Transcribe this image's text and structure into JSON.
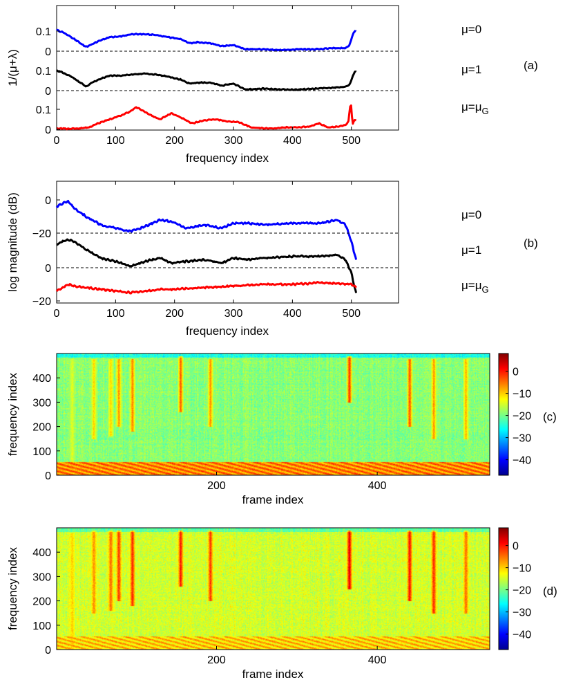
{
  "chart_data": [
    {
      "type": "line",
      "panel_label": "(a)",
      "xlabel": "frequency index",
      "ylabel": "1/(μ+λ)",
      "xlim": [
        0,
        580
      ],
      "xticks": [
        0,
        100,
        200,
        300,
        400,
        500
      ],
      "subplot_yticks": [
        "0",
        "0.1"
      ],
      "reference_line": "dashed at 0",
      "series": [
        {
          "name": "μ=0",
          "color": "#0000ff",
          "x": [
            0,
            10,
            25,
            40,
            50,
            60,
            75,
            90,
            110,
            130,
            150,
            170,
            190,
            210,
            225,
            240,
            260,
            280,
            300,
            320,
            350,
            380,
            410,
            440,
            470,
            490,
            497,
            502,
            507
          ],
          "values": [
            0.105,
            0.095,
            0.07,
            0.04,
            0.02,
            0.035,
            0.055,
            0.07,
            0.075,
            0.085,
            0.085,
            0.08,
            0.07,
            0.06,
            0.04,
            0.045,
            0.04,
            0.025,
            0.03,
            0.01,
            0.01,
            0.005,
            0.01,
            0.01,
            0.015,
            0.015,
            0.03,
            0.08,
            0.105
          ]
        },
        {
          "name": "μ=1",
          "color": "#000000",
          "x": [
            0,
            10,
            25,
            40,
            50,
            60,
            75,
            90,
            110,
            130,
            150,
            170,
            190,
            210,
            225,
            240,
            260,
            280,
            300,
            320,
            350,
            380,
            410,
            440,
            470,
            490,
            497,
            502,
            507
          ],
          "values": [
            0.1,
            0.09,
            0.07,
            0.04,
            0.02,
            0.04,
            0.06,
            0.075,
            0.075,
            0.08,
            0.085,
            0.08,
            0.07,
            0.055,
            0.035,
            0.04,
            0.04,
            0.025,
            0.035,
            0.005,
            0.01,
            0.005,
            0.005,
            0.01,
            0.015,
            0.02,
            0.03,
            0.07,
            0.1
          ]
        },
        {
          "name": "μ=μG",
          "color": "#ff0000",
          "x": [
            0,
            20,
            40,
            55,
            70,
            90,
            110,
            125,
            135,
            145,
            160,
            175,
            195,
            210,
            230,
            250,
            270,
            290,
            310,
            330,
            350,
            370,
            390,
            410,
            430,
            445,
            460,
            480,
            490,
            495,
            499,
            502,
            505,
            508
          ],
          "values": [
            0.005,
            0.003,
            0.005,
            0.01,
            0.03,
            0.05,
            0.07,
            0.09,
            0.11,
            0.095,
            0.07,
            0.05,
            0.08,
            0.06,
            0.03,
            0.045,
            0.05,
            0.04,
            0.035,
            0.01,
            0.005,
            0.005,
            0.01,
            0.01,
            0.015,
            0.03,
            0.01,
            0.015,
            0.02,
            0.04,
            0.14,
            0.02,
            0.05,
            0.045
          ]
        }
      ]
    },
    {
      "type": "line",
      "panel_label": "(b)",
      "xlabel": "frequency index",
      "ylabel": "log magnitude (dB)",
      "xlim": [
        0,
        580
      ],
      "xticks": [
        0,
        100,
        200,
        300,
        400,
        500
      ],
      "subplot_yticks": [
        "0",
        "−20"
      ],
      "reference_line": "dashed at 0",
      "series": [
        {
          "name": "μ=0",
          "color": "#0000ff",
          "x": [
            0,
            10,
            20,
            30,
            50,
            75,
            100,
            125,
            150,
            175,
            195,
            220,
            250,
            280,
            300,
            325,
            350,
            400,
            450,
            475,
            490,
            500,
            505,
            508
          ],
          "values": [
            -4,
            -2,
            -1,
            -5,
            -10,
            -15,
            -17,
            -19,
            -16,
            -12,
            -13,
            -17,
            -15,
            -17,
            -14,
            -14,
            -15,
            -14,
            -14,
            -12,
            -15,
            -25,
            -32,
            -36
          ]
        },
        {
          "name": "μ=1",
          "color": "#000000",
          "x": [
            0,
            10,
            20,
            30,
            50,
            75,
            100,
            125,
            150,
            175,
            195,
            220,
            250,
            280,
            300,
            325,
            350,
            400,
            450,
            475,
            490,
            500,
            505,
            508
          ],
          "values": [
            -7,
            -5,
            -4,
            -5,
            -10,
            -15,
            -17,
            -20,
            -17,
            -15,
            -18,
            -17,
            -16,
            -18,
            -15,
            -16,
            -15,
            -14,
            -14,
            -13,
            -16,
            -24,
            -32,
            -36
          ]
        },
        {
          "name": "μ=μG",
          "color": "#ff0000",
          "x": [
            0,
            10,
            20,
            30,
            50,
            75,
            100,
            125,
            150,
            175,
            200,
            250,
            300,
            350,
            400,
            450,
            500,
            508
          ],
          "values": [
            -14,
            -12,
            -10,
            -11,
            -12,
            -13,
            -14,
            -15,
            -14,
            -13,
            -13,
            -12,
            -11,
            -10,
            -10,
            -9,
            -10,
            -12
          ]
        }
      ]
    },
    {
      "type": "heatmap",
      "panel_label": "(c)",
      "xlabel": "frame index",
      "ylabel": "frequency index",
      "xlim": [
        1,
        540
      ],
      "ylim": [
        0,
        500
      ],
      "xticks": [
        200,
        400
      ],
      "yticks": [
        0,
        100,
        200,
        300,
        400
      ],
      "colorbar_ticks": [
        0,
        -10,
        -20,
        -30,
        -40
      ],
      "clim": [
        -47,
        8
      ],
      "colormap": "jet",
      "base_level": -19,
      "low_frequency_band": {
        "freq_max": 55,
        "level": -6
      },
      "events": [
        {
          "frame": 20,
          "fmin": 0,
          "fmax": 480,
          "level": -14
        },
        {
          "frame": 47,
          "fmin": 150,
          "fmax": 480,
          "level": -10
        },
        {
          "frame": 68,
          "fmin": 160,
          "fmax": 480,
          "level": -10
        },
        {
          "frame": 78,
          "fmin": 200,
          "fmax": 480,
          "level": -6
        },
        {
          "frame": 95,
          "fmin": 180,
          "fmax": 480,
          "level": -5
        },
        {
          "frame": 155,
          "fmin": 260,
          "fmax": 490,
          "level": -3
        },
        {
          "frame": 192,
          "fmin": 200,
          "fmax": 480,
          "level": -6
        },
        {
          "frame": 365,
          "fmin": 300,
          "fmax": 490,
          "level": 0
        },
        {
          "frame": 440,
          "fmin": 200,
          "fmax": 480,
          "level": -2
        },
        {
          "frame": 470,
          "fmin": 150,
          "fmax": 480,
          "level": -6
        },
        {
          "frame": 510,
          "fmin": 150,
          "fmax": 480,
          "level": -8
        }
      ]
    },
    {
      "type": "heatmap",
      "panel_label": "(d)",
      "xlabel": "frame index",
      "ylabel": "frequency index",
      "xlim": [
        1,
        540
      ],
      "ylim": [
        0,
        500
      ],
      "xticks": [
        200,
        400
      ],
      "yticks": [
        0,
        100,
        200,
        300,
        400
      ],
      "colorbar_ticks": [
        0,
        -10,
        -20,
        -30,
        -40
      ],
      "clim": [
        -47,
        8
      ],
      "colormap": "jet",
      "base_level": -15,
      "low_frequency_band": {
        "freq_max": 55,
        "level": -10
      },
      "events": [
        {
          "frame": 20,
          "fmin": 0,
          "fmax": 480,
          "level": -10
        },
        {
          "frame": 47,
          "fmin": 150,
          "fmax": 490,
          "level": -6
        },
        {
          "frame": 68,
          "fmin": 160,
          "fmax": 490,
          "level": -4
        },
        {
          "frame": 78,
          "fmin": 200,
          "fmax": 490,
          "level": -1
        },
        {
          "frame": 95,
          "fmin": 180,
          "fmax": 490,
          "level": 0
        },
        {
          "frame": 155,
          "fmin": 260,
          "fmax": 490,
          "level": 1
        },
        {
          "frame": 192,
          "fmin": 200,
          "fmax": 490,
          "level": -1
        },
        {
          "frame": 365,
          "fmin": 250,
          "fmax": 490,
          "level": 4
        },
        {
          "frame": 440,
          "fmin": 200,
          "fmax": 490,
          "level": 2
        },
        {
          "frame": 470,
          "fmin": 150,
          "fmax": 490,
          "level": 0
        },
        {
          "frame": 510,
          "fmin": 150,
          "fmax": 490,
          "level": -4
        }
      ]
    }
  ]
}
